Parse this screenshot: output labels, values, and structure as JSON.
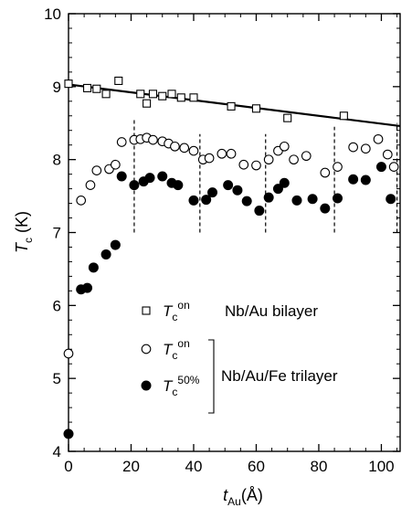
{
  "chart_data": {
    "type": "scatter",
    "title": "",
    "xlabel": {
      "main": "t",
      "sub": "Au",
      "unit": "(Å)"
    },
    "ylabel": {
      "main": "T",
      "sub": "c",
      "unit": " (K)"
    },
    "xlim": [
      0,
      106
    ],
    "ylim": [
      4,
      10
    ],
    "x_ticks": [
      0,
      20,
      40,
      60,
      80,
      100
    ],
    "y_ticks": [
      4,
      5,
      6,
      7,
      8,
      9,
      10
    ],
    "grid": false,
    "series": [
      {
        "name": "Nb/Au bilayer",
        "marker": "open-square",
        "legend_symbol": "T",
        "legend_sub": "c",
        "legend_sup": "on",
        "points": [
          [
            0,
            9.04
          ],
          [
            6,
            8.98
          ],
          [
            9,
            8.97
          ],
          [
            12,
            8.9
          ],
          [
            16,
            9.08
          ],
          [
            23,
            8.9
          ],
          [
            25,
            8.77
          ],
          [
            27,
            8.9
          ],
          [
            30,
            8.87
          ],
          [
            33,
            8.9
          ],
          [
            36,
            8.85
          ],
          [
            40,
            8.85
          ],
          [
            52,
            8.73
          ],
          [
            60,
            8.7
          ],
          [
            70,
            8.57
          ],
          [
            88,
            8.6
          ]
        ]
      },
      {
        "name": "Nb/Au/Fe trilayer",
        "marker": "open-circle",
        "legend_symbol": "T",
        "legend_sub": "c",
        "legend_sup": "on",
        "points": [
          [
            0,
            5.34
          ],
          [
            4,
            7.44
          ],
          [
            7,
            7.65
          ],
          [
            9,
            7.85
          ],
          [
            13,
            7.87
          ],
          [
            15,
            7.93
          ],
          [
            17,
            8.24
          ],
          [
            21,
            8.27
          ],
          [
            23,
            8.28
          ],
          [
            25,
            8.3
          ],
          [
            27,
            8.27
          ],
          [
            30,
            8.25
          ],
          [
            32,
            8.22
          ],
          [
            34,
            8.18
          ],
          [
            37,
            8.16
          ],
          [
            40,
            8.12
          ],
          [
            43,
            8.0
          ],
          [
            45,
            8.02
          ],
          [
            49,
            8.08
          ],
          [
            52,
            8.08
          ],
          [
            56,
            7.93
          ],
          [
            60,
            7.92
          ],
          [
            64,
            8.0
          ],
          [
            67,
            8.12
          ],
          [
            69,
            8.18
          ],
          [
            72,
            8.0
          ],
          [
            76,
            8.05
          ],
          [
            82,
            7.82
          ],
          [
            86,
            7.9
          ],
          [
            91,
            8.17
          ],
          [
            95,
            8.15
          ],
          [
            99,
            8.28
          ],
          [
            102,
            8.07
          ],
          [
            104,
            7.9
          ]
        ]
      },
      {
        "name": "Nb/Au/Fe trilayer",
        "marker": "filled-circle",
        "legend_symbol": "T",
        "legend_sub": "c",
        "legend_sup": "50%",
        "points": [
          [
            0,
            4.24
          ],
          [
            4,
            6.22
          ],
          [
            6,
            6.24
          ],
          [
            8,
            6.52
          ],
          [
            12,
            6.7
          ],
          [
            15,
            6.83
          ],
          [
            17,
            7.77
          ],
          [
            21,
            7.65
          ],
          [
            24,
            7.7
          ],
          [
            26,
            7.75
          ],
          [
            30,
            7.77
          ],
          [
            33,
            7.68
          ],
          [
            35,
            7.65
          ],
          [
            40,
            7.44
          ],
          [
            44,
            7.45
          ],
          [
            46,
            7.55
          ],
          [
            51,
            7.65
          ],
          [
            54,
            7.58
          ],
          [
            57,
            7.43
          ],
          [
            61,
            7.3
          ],
          [
            64,
            7.48
          ],
          [
            67,
            7.6
          ],
          [
            69,
            7.68
          ],
          [
            73,
            7.44
          ],
          [
            78,
            7.46
          ],
          [
            82,
            7.33
          ],
          [
            86,
            7.47
          ],
          [
            91,
            7.73
          ],
          [
            95,
            7.72
          ],
          [
            100,
            7.9
          ],
          [
            103,
            7.46
          ]
        ]
      }
    ],
    "fit_line": {
      "from": [
        0,
        9.03
      ],
      "to": [
        106,
        8.46
      ]
    },
    "dashed_lines": [
      {
        "x": 21,
        "y_from": 7.0,
        "y_to": 8.55
      },
      {
        "x": 42,
        "y_from": 7.0,
        "y_to": 8.35
      },
      {
        "x": 63,
        "y_from": 7.0,
        "y_to": 8.35
      },
      {
        "x": 85,
        "y_from": 7.0,
        "y_to": 8.45
      },
      {
        "x": 105,
        "y_from": 7.0,
        "y_to": 8.5
      }
    ],
    "legend_entries": [
      {
        "marker": "open-square",
        "sup": "on",
        "label": "Nb/Au bilayer"
      },
      {
        "marker": "open-circle",
        "sup": "on",
        "label": ""
      },
      {
        "marker": "filled-circle",
        "sup": "50%",
        "label": ""
      }
    ],
    "legend_group_label": "Nb/Au/Fe trilayer",
    "legend_symbol": {
      "main": "T",
      "sub": "c"
    },
    "colors": {
      "ink": "#000000",
      "background": "#ffffff"
    }
  }
}
